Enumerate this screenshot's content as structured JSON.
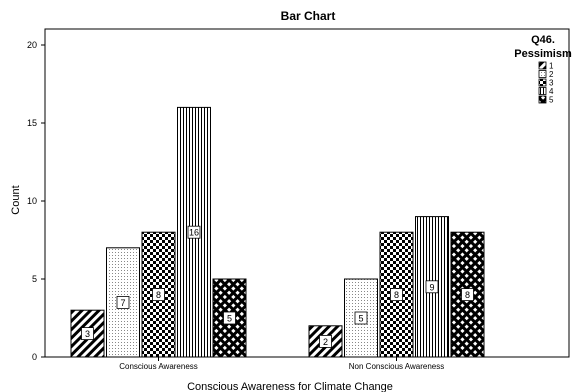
{
  "chart_data": {
    "type": "bar",
    "title": "Bar Chart",
    "xlabel": "Conscious Awareness for Climate Change",
    "ylabel": "Count",
    "ylim": [
      0,
      20
    ],
    "yticks": [
      0,
      5,
      10,
      15,
      20
    ],
    "categories": [
      "Conscious Awareness",
      "Non Conscious Awareness"
    ],
    "legend": {
      "title_lines": [
        "Q46.",
        "Pessimism"
      ],
      "position": "right"
    },
    "series": [
      {
        "name": "1",
        "values": [
          3,
          2
        ],
        "pattern": "diagonal-stripes"
      },
      {
        "name": "2",
        "values": [
          7,
          5
        ],
        "pattern": "dotted"
      },
      {
        "name": "3",
        "values": [
          8,
          8
        ],
        "pattern": "checkerboard"
      },
      {
        "name": "4",
        "values": [
          16,
          9
        ],
        "pattern": "vertical-lines"
      },
      {
        "name": "5",
        "values": [
          5,
          8
        ],
        "pattern": "diamond-crosshatch"
      }
    ],
    "grid": false
  }
}
